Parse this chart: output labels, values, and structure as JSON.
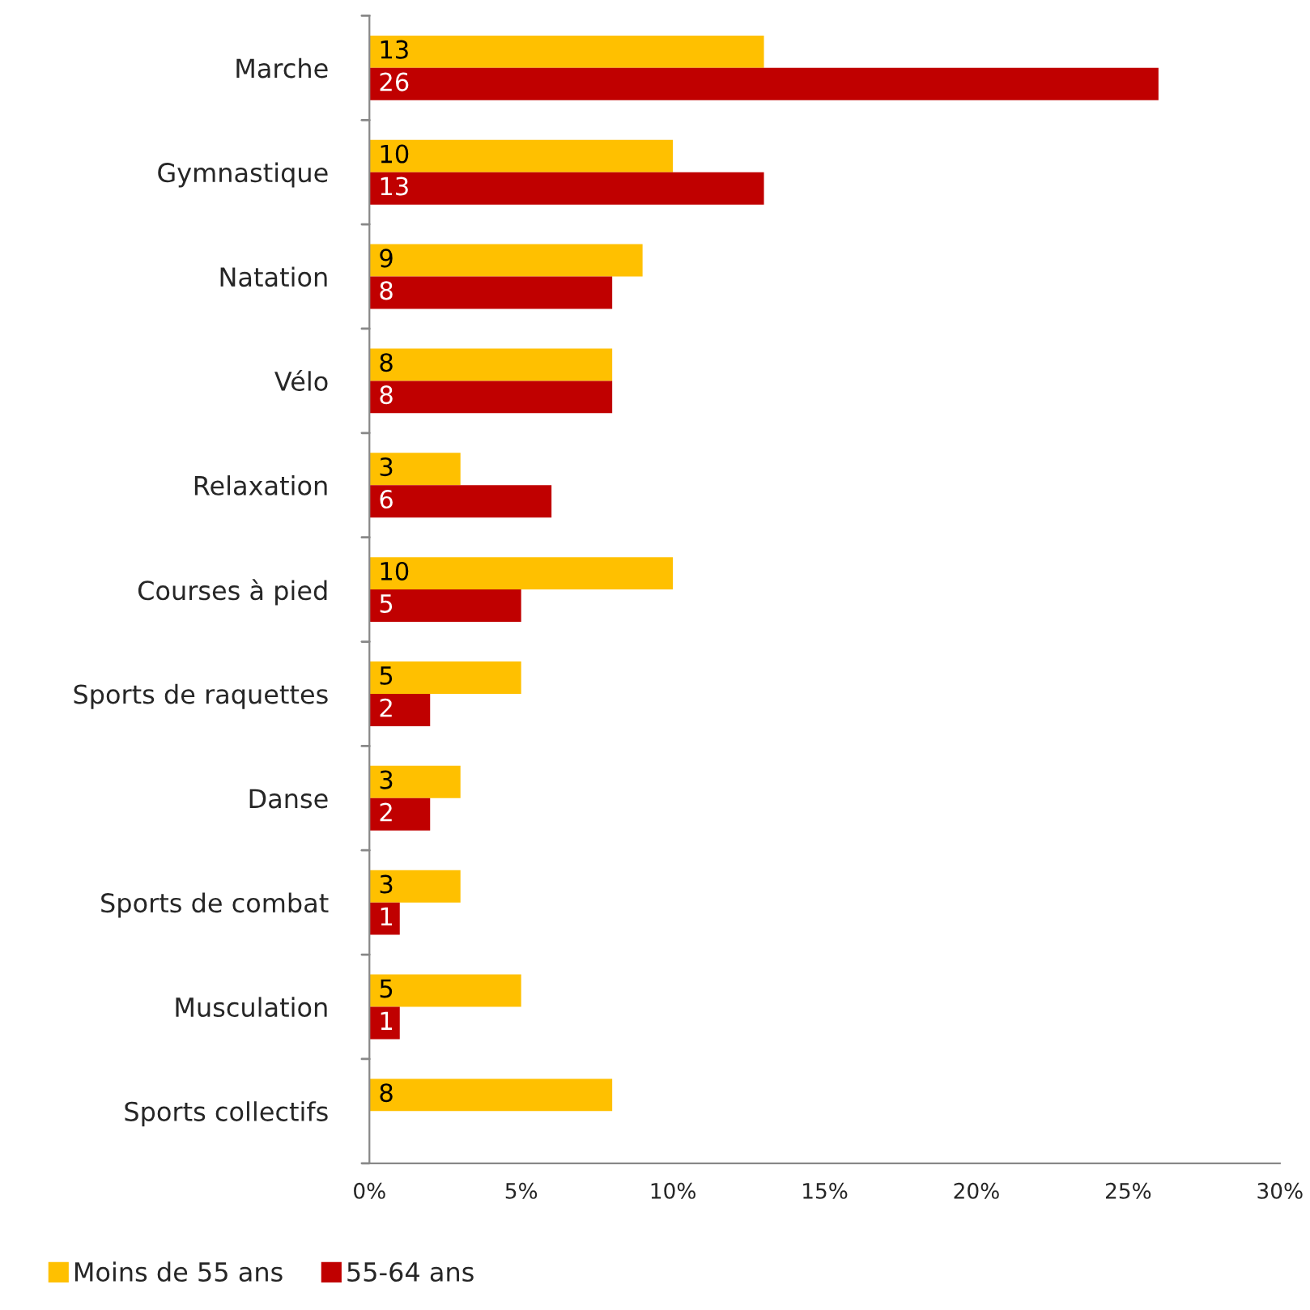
{
  "chart_data": {
    "type": "bar",
    "orientation": "horizontal",
    "categories": [
      "Marche",
      "Gymnastique",
      "Natation",
      "Vélo",
      "Relaxation",
      "Courses à pied",
      "Sports de raquettes",
      "Danse",
      "Sports de combat",
      "Musculation",
      "Sports collectifs"
    ],
    "series": [
      {
        "name": "Moins de 55 ans",
        "color": "#ffc000",
        "values": [
          13,
          10,
          9,
          8,
          3,
          10,
          5,
          3,
          3,
          5,
          8
        ]
      },
      {
        "name": "55-64 ans",
        "color": "#c00000",
        "values": [
          26,
          13,
          8,
          8,
          6,
          5,
          2,
          2,
          1,
          1,
          null
        ]
      }
    ],
    "xlim": [
      0,
      30
    ],
    "xticks": [
      {
        "value": 0,
        "label": "0%"
      },
      {
        "value": 5,
        "label": "5%"
      },
      {
        "value": 10,
        "label": "10%"
      },
      {
        "value": 15,
        "label": "15%"
      },
      {
        "value": 20,
        "label": "20%"
      },
      {
        "value": 25,
        "label": "25%"
      },
      {
        "value": 30,
        "label": "30%"
      }
    ],
    "data_labels": true,
    "grid": false,
    "legend": "bottom"
  }
}
